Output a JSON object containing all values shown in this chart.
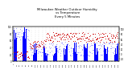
{
  "title": "Milwaukee Weather Outdoor Humidity\nvs Temperature\nEvery 5 Minutes",
  "title_fontsize": 2.8,
  "background_color": "#ffffff",
  "grid_color": "#aaaaaa",
  "humidity_color": "#0000ff",
  "temp_color": "#cc0000",
  "ylim_humidity": [
    0,
    100
  ],
  "ylim_temp": [
    -30,
    110
  ],
  "humidity_lw": 0.5,
  "n_points": 500,
  "seed": 42
}
